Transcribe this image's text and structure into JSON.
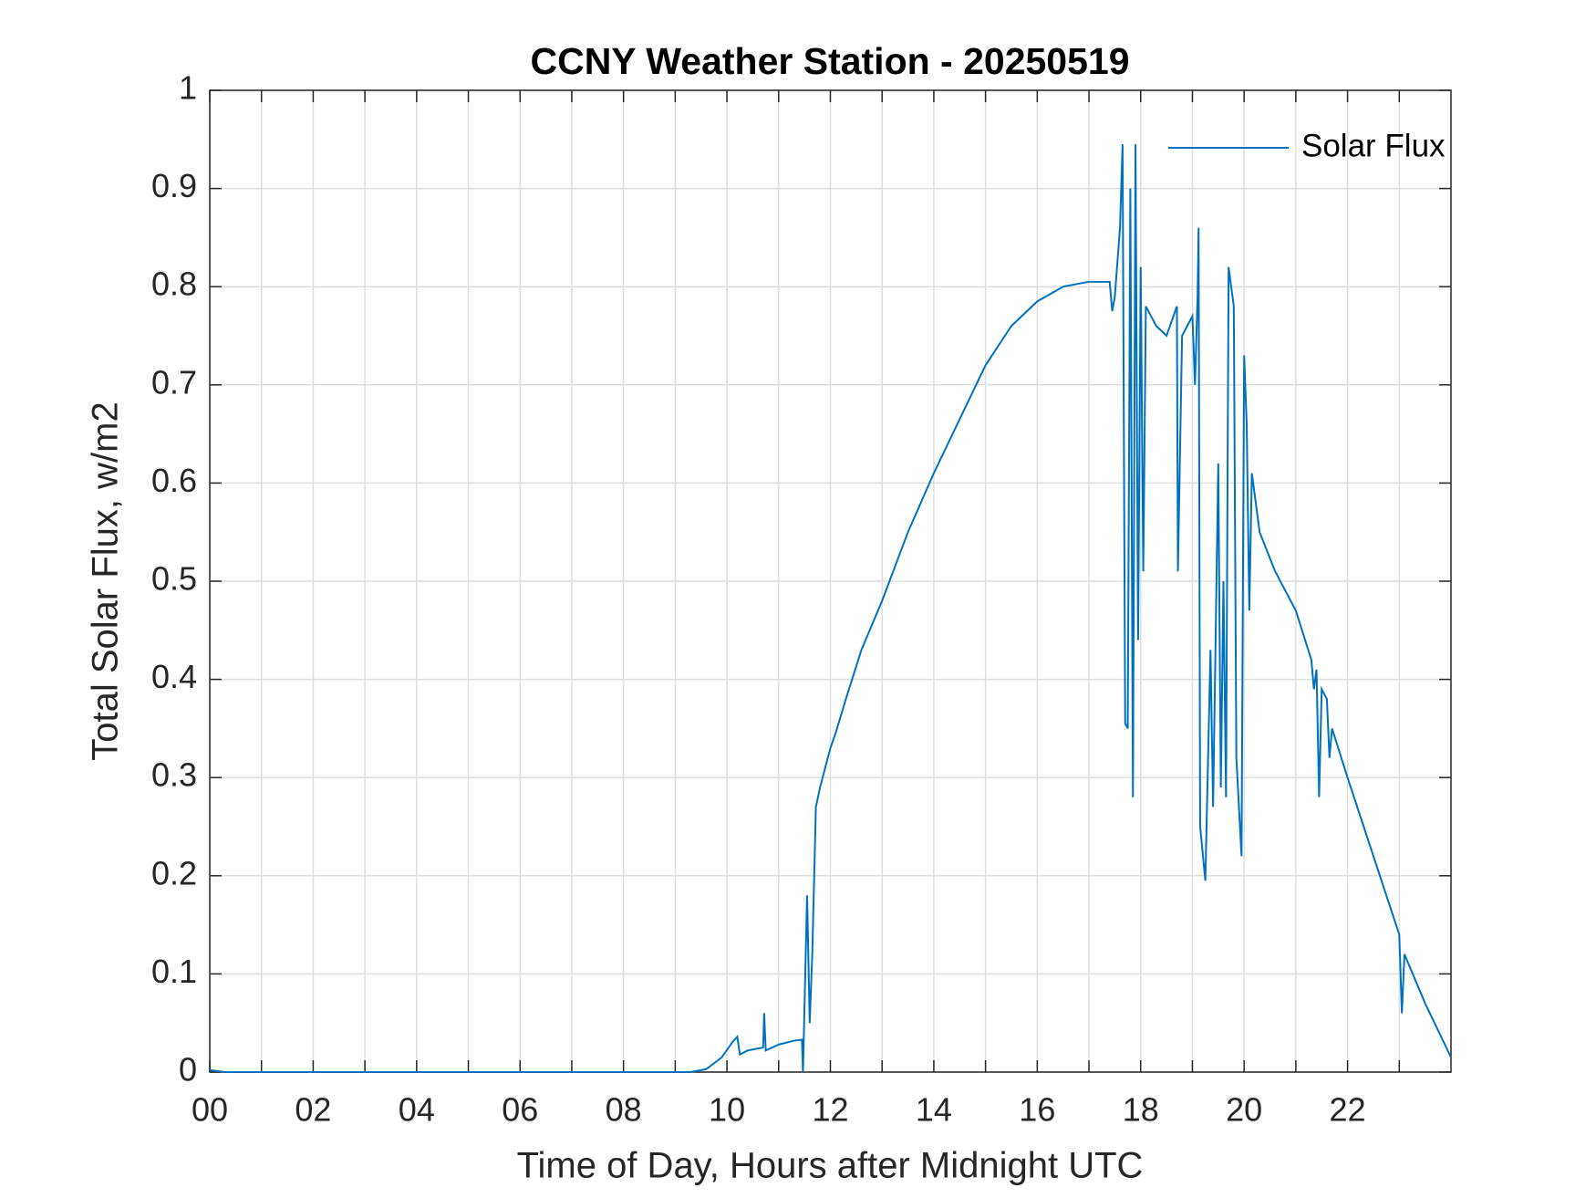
{
  "chart_data": {
    "type": "line",
    "title": "CCNY Weather Station - 20250519",
    "xlabel": "Time of Day, Hours after Midnight UTC",
    "ylabel": "Total Solar Flux, w/m2",
    "x": [
      0,
      0.3,
      9.3,
      9.6,
      9.9,
      10.1,
      10.2,
      10.25,
      10.4,
      10.7,
      10.72,
      10.75,
      11.0,
      11.3,
      11.45,
      11.47,
      11.55,
      11.6,
      11.65,
      11.72,
      11.8,
      12.0,
      12.1,
      12.3,
      12.6,
      13.0,
      13.5,
      14.0,
      14.5,
      15.0,
      15.5,
      16.0,
      16.5,
      17.0,
      17.4,
      17.45,
      17.5,
      17.6,
      17.65,
      17.7,
      17.75,
      17.8,
      17.85,
      17.9,
      17.95,
      18.0,
      18.05,
      18.1,
      18.3,
      18.5,
      18.7,
      18.72,
      18.8,
      19.0,
      19.05,
      19.1,
      19.12,
      19.15,
      19.25,
      19.35,
      19.4,
      19.5,
      19.55,
      19.6,
      19.65,
      19.7,
      19.8,
      19.85,
      19.95,
      20.0,
      20.05,
      20.1,
      20.15,
      20.3,
      20.6,
      21.0,
      21.3,
      21.35,
      21.4,
      21.45,
      21.5,
      21.6,
      21.65,
      21.7,
      22.0,
      22.5,
      23.0,
      23.05,
      23.1,
      23.5,
      24.0
    ],
    "series": [
      {
        "name": "Solar Flux",
        "color": "#0072bd",
        "values": [
          0.002,
          0,
          0,
          0.003,
          0.015,
          0.03,
          0.036,
          0.018,
          0.022,
          0.025,
          0.06,
          0.022,
          0.028,
          0.032,
          0.033,
          0,
          0.18,
          0.05,
          0.12,
          0.27,
          0.29,
          0.33,
          0.345,
          0.38,
          0.43,
          0.48,
          0.55,
          0.61,
          0.665,
          0.72,
          0.76,
          0.785,
          0.8,
          0.805,
          0.805,
          0.775,
          0.79,
          0.86,
          0.945,
          0.355,
          0.35,
          0.9,
          0.28,
          0.945,
          0.44,
          0.82,
          0.51,
          0.78,
          0.76,
          0.75,
          0.78,
          0.51,
          0.75,
          0.77,
          0.7,
          0.79,
          0.86,
          0.25,
          0.195,
          0.43,
          0.27,
          0.62,
          0.29,
          0.5,
          0.28,
          0.82,
          0.78,
          0.32,
          0.22,
          0.73,
          0.66,
          0.47,
          0.61,
          0.55,
          0.51,
          0.47,
          0.42,
          0.39,
          0.41,
          0.28,
          0.39,
          0.38,
          0.32,
          0.35,
          0.3,
          0.22,
          0.14,
          0.06,
          0.12,
          0.07,
          0.015
        ]
      }
    ],
    "xlim": [
      0,
      24
    ],
    "xticks": [
      {
        "value": 0,
        "label": "00"
      },
      {
        "value": 1,
        "label": null
      },
      {
        "value": 2,
        "label": "02"
      },
      {
        "value": 3,
        "label": null
      },
      {
        "value": 4,
        "label": "04"
      },
      {
        "value": 5,
        "label": null
      },
      {
        "value": 6,
        "label": "06"
      },
      {
        "value": 7,
        "label": null
      },
      {
        "value": 8,
        "label": "08"
      },
      {
        "value": 9,
        "label": null
      },
      {
        "value": 10,
        "label": "10"
      },
      {
        "value": 11,
        "label": null
      },
      {
        "value": 12,
        "label": "12"
      },
      {
        "value": 13,
        "label": null
      },
      {
        "value": 14,
        "label": "14"
      },
      {
        "value": 15,
        "label": null
      },
      {
        "value": 16,
        "label": "16"
      },
      {
        "value": 17,
        "label": null
      },
      {
        "value": 18,
        "label": "18"
      },
      {
        "value": 19,
        "label": null
      },
      {
        "value": 20,
        "label": "20"
      },
      {
        "value": 21,
        "label": null
      },
      {
        "value": 22,
        "label": "22"
      },
      {
        "value": 23,
        "label": null
      }
    ],
    "ylim": [
      0,
      1
    ],
    "yticks": [
      0,
      0.1,
      0.2,
      0.3,
      0.4,
      0.5,
      0.6,
      0.7,
      0.8,
      0.9,
      1
    ],
    "grid": true,
    "legend": "northeast"
  }
}
